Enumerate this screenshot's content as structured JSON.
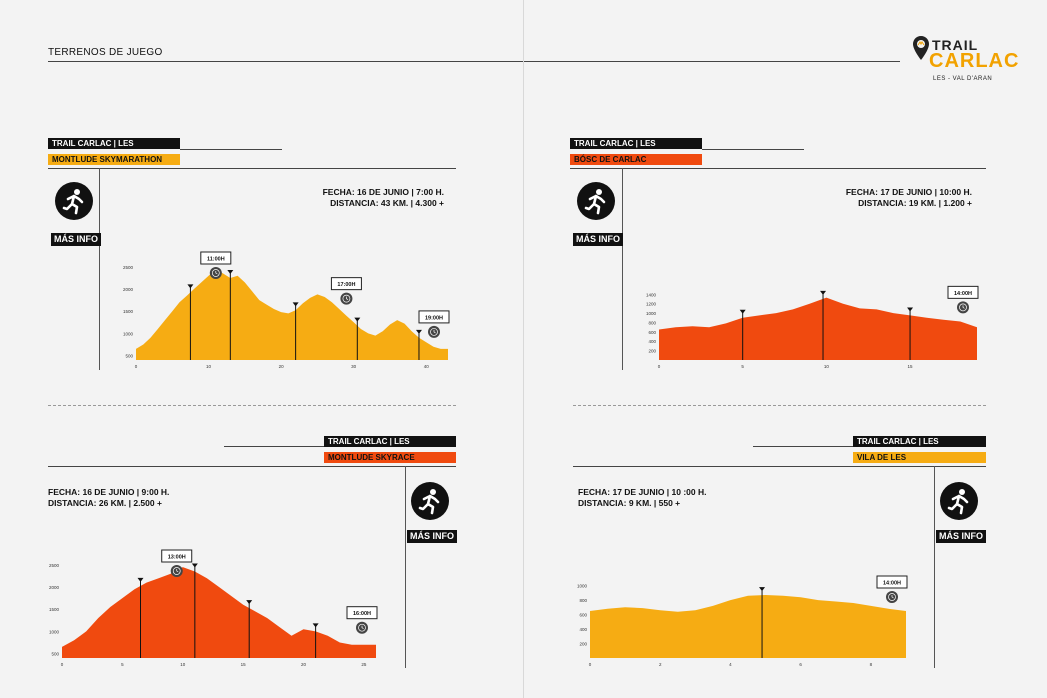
{
  "header": {
    "section_title": "TERRENOS DE JUEGO",
    "logo": {
      "line1": "TRAIL",
      "line2": "CARLAC",
      "line3": "LES - VAL D'ARAN"
    }
  },
  "races": [
    {
      "org": "TRAIL CARLAC | LES",
      "name": "MONTLUDE SKYMARATHON",
      "color": "#f6ac13",
      "fecha": "FECHA: 16 DE JUNIO  |  7:00 H.",
      "distancia": "DISTANCIA: 43 KM.  |  4.300 +",
      "mas_info": "MÁS INFO",
      "chart_data": {
        "type": "area",
        "x": [
          0,
          1,
          2,
          3,
          4,
          5,
          6,
          7,
          8,
          9,
          10,
          11,
          12,
          13,
          14,
          15,
          16,
          17,
          18,
          19,
          20,
          21,
          22,
          23,
          24,
          25,
          26,
          27,
          28,
          29,
          30,
          31,
          32,
          33,
          34,
          35,
          36,
          37,
          38,
          39,
          40,
          41,
          42,
          43
        ],
        "y": [
          650,
          750,
          900,
          1100,
          1300,
          1500,
          1700,
          1850,
          2000,
          2150,
          2300,
          2450,
          2350,
          2250,
          2300,
          2150,
          1950,
          1750,
          1650,
          1550,
          1480,
          1450,
          1520,
          1680,
          1800,
          1880,
          1820,
          1700,
          1550,
          1400,
          1250,
          1100,
          1000,
          950,
          1050,
          1200,
          1300,
          1220,
          1050,
          900,
          800,
          700,
          650,
          650
        ],
        "yticks": [
          "2500",
          "2000",
          "1500",
          "1000",
          "500"
        ],
        "xticks": [
          {
            "x": 0,
            "label": "0"
          },
          {
            "x": 10,
            "label": "10"
          },
          {
            "x": 20,
            "label": "20"
          },
          {
            "x": 30,
            "label": "30"
          },
          {
            "x": 40,
            "label": "40"
          }
        ],
        "ylim": [
          400,
          2700
        ],
        "xlim": [
          0,
          43
        ],
        "markers": [
          7.5,
          13,
          22,
          30.5,
          39
        ],
        "cutoffs": [
          {
            "x": 11,
            "label": "11:00H"
          },
          {
            "x": 29,
            "label": "17:00H"
          },
          {
            "x": 42,
            "label": "19:00H"
          }
        ]
      }
    },
    {
      "org": "TRAIL CARLAC | LES",
      "name": "BÓSC DE CARLAC",
      "color": "#f04a0f",
      "fecha": "FECHA: 17 DE JUNIO  |  10:00 H.",
      "distancia": "DISTANCIA: 19 KM.  |  1.200 +",
      "mas_info": "MÁS INFO",
      "chart_data": {
        "type": "area",
        "x": [
          0,
          1,
          2,
          3,
          4,
          5,
          6,
          7,
          8,
          9,
          10,
          11,
          12,
          13,
          14,
          15,
          16,
          17,
          18,
          19
        ],
        "y": [
          650,
          700,
          720,
          700,
          780,
          900,
          950,
          1000,
          1080,
          1200,
          1330,
          1200,
          1100,
          1080,
          1000,
          950,
          900,
          860,
          820,
          700
        ],
        "yticks": [
          "1400",
          "1200",
          "1000",
          "800",
          "600",
          "400",
          "200"
        ],
        "xticks": [
          {
            "x": 0,
            "label": "0"
          },
          {
            "x": 5,
            "label": "5"
          },
          {
            "x": 10,
            "label": "10"
          },
          {
            "x": 15,
            "label": "15"
          }
        ],
        "ylim": [
          0,
          1450
        ],
        "xlim": [
          0,
          19
        ],
        "markers": [
          5,
          9.8,
          15
        ],
        "cutoffs": [
          {
            "x": 18.5,
            "label": "14:00H"
          }
        ]
      }
    },
    {
      "org": "TRAIL CARLAC | LES",
      "name": "MONTLUDE SKYRACE",
      "color": "#f04a0f",
      "fecha": "FECHA: 16 DE JUNIO  |  9:00 H.",
      "distancia": "DISTANCIA: 26 KM.  |  2.500 +",
      "mas_info": "MÁS INFO",
      "chart_data": {
        "type": "area",
        "x": [
          0,
          1,
          2,
          3,
          4,
          5,
          6,
          7,
          8,
          9,
          10,
          11,
          12,
          13,
          14,
          15,
          16,
          17,
          18,
          19,
          20,
          21,
          22,
          23,
          24,
          25,
          26
        ],
        "y": [
          650,
          800,
          1000,
          1300,
          1550,
          1750,
          1950,
          2100,
          2200,
          2300,
          2450,
          2350,
          2200,
          2000,
          1800,
          1600,
          1450,
          1300,
          1100,
          900,
          1050,
          1000,
          900,
          750,
          700,
          700,
          700
        ],
        "yticks": [
          "2500",
          "2000",
          "1500",
          "1000",
          "500"
        ],
        "xticks": [
          {
            "x": 0,
            "label": "0"
          },
          {
            "x": 5,
            "label": "5"
          },
          {
            "x": 10,
            "label": "10"
          },
          {
            "x": 15,
            "label": "15"
          },
          {
            "x": 20,
            "label": "20"
          },
          {
            "x": 25,
            "label": "25"
          }
        ],
        "ylim": [
          400,
          2700
        ],
        "xlim": [
          0,
          26
        ],
        "markers": [
          6.5,
          11,
          15.5,
          21
        ],
        "cutoffs": [
          {
            "x": 9.5,
            "label": "13:00H"
          },
          {
            "x": 25,
            "label": "16:00H"
          }
        ]
      }
    },
    {
      "org": "TRAIL CARLAC | LES",
      "name": "VILA DE LES",
      "color": "#f6ac13",
      "fecha": "FECHA: 17 DE JUNIO  |  10 :00 H.",
      "distancia": "DISTANCIA: 9 KM.  |  550 +",
      "mas_info": "MÁS INFO",
      "chart_data": {
        "type": "area",
        "x": [
          0,
          0.5,
          1,
          1.5,
          2,
          2.5,
          3,
          3.5,
          4,
          4.5,
          5,
          5.5,
          6,
          6.5,
          7,
          7.5,
          8,
          8.5,
          9
        ],
        "y": [
          650,
          680,
          700,
          690,
          660,
          640,
          660,
          720,
          800,
          860,
          870,
          860,
          840,
          800,
          780,
          760,
          720,
          680,
          650
        ],
        "yticks": [
          "1000",
          "800",
          "600",
          "400",
          "200"
        ],
        "xticks": [
          {
            "x": 0,
            "label": "0"
          },
          {
            "x": 2,
            "label": "2"
          },
          {
            "x": 4,
            "label": "4"
          },
          {
            "x": 6,
            "label": "6"
          },
          {
            "x": 8,
            "label": "8"
          }
        ],
        "ylim": [
          0,
          1050
        ],
        "xlim": [
          0,
          9
        ],
        "markers": [
          4.9
        ],
        "cutoffs": [
          {
            "x": 8.8,
            "label": "14:00H"
          }
        ]
      }
    }
  ]
}
